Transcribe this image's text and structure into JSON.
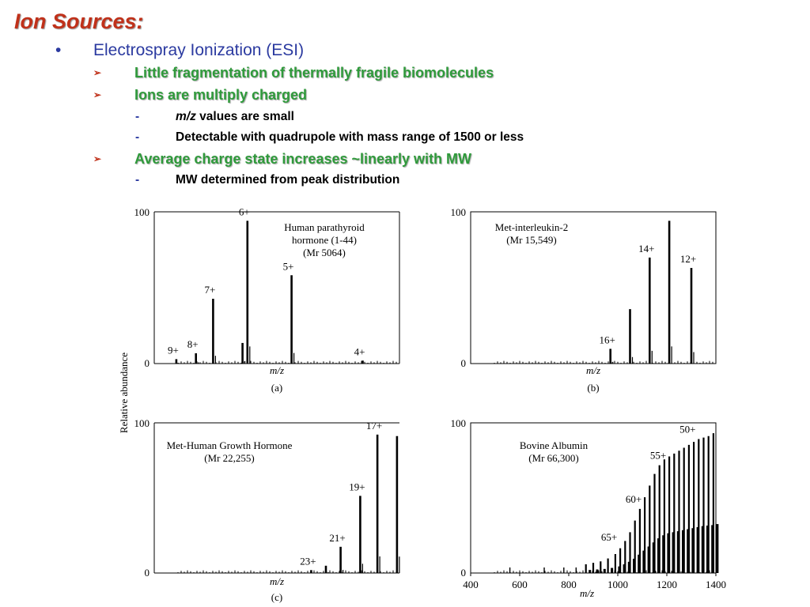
{
  "slide": {
    "title": "Ion Sources:",
    "bullet1": {
      "marker": "•",
      "text": "Electrospray Ionization (ESI)"
    },
    "sub1": {
      "marker": "➢",
      "text": "Little fragmentation of thermally fragile biomolecules"
    },
    "sub2": {
      "marker": "➢",
      "text": "Ions are multiply charged"
    },
    "sub2a": {
      "marker": "-",
      "italic": "m/z",
      "rest": " values are small"
    },
    "sub2b": {
      "marker": "-",
      "text": "Detectable with quadrupole with mass range of 1500 or less"
    },
    "sub3": {
      "marker": "➢",
      "text": "Average charge state increases ~linearly with MW"
    },
    "sub3a": {
      "marker": "-",
      "text": "MW determined from peak distribution"
    }
  },
  "figure": {
    "ylabel": "Relative abundance"
  },
  "chart_data": [
    {
      "type": "line",
      "panel": "(a)",
      "title_lines": [
        "Human parathyroid",
        "hormone (1-44)",
        "(Mr 5064)"
      ],
      "xlabel": "m/z",
      "ylabel": "Relative abundance",
      "ylim": [
        0,
        100
      ],
      "yticks": [
        "100",
        "0"
      ],
      "peaks": [
        {
          "label": "9+",
          "x": 0.09,
          "y": 3
        },
        {
          "label": "8+",
          "x": 0.17,
          "y": 7
        },
        {
          "label": "7+",
          "x": 0.24,
          "y": 44
        },
        {
          "label": "",
          "x": 0.36,
          "y": 14
        },
        {
          "label": "6+",
          "x": 0.38,
          "y": 97
        },
        {
          "label": "5+",
          "x": 0.56,
          "y": 60
        },
        {
          "label": "4+",
          "x": 0.85,
          "y": 2
        }
      ]
    },
    {
      "type": "line",
      "panel": "(b)",
      "title_lines": [
        "Met-interleukin-2",
        "(Mr 15,549)"
      ],
      "xlabel": "m/z",
      "ylim": [
        0,
        100
      ],
      "yticks": [
        "100",
        "0"
      ],
      "peaks": [
        {
          "label": "16+",
          "x": 0.57,
          "y": 10
        },
        {
          "label": "",
          "x": 0.65,
          "y": 37
        },
        {
          "label": "14+",
          "x": 0.73,
          "y": 72
        },
        {
          "label": "",
          "x": 0.81,
          "y": 97
        },
        {
          "label": "12+",
          "x": 0.9,
          "y": 65
        }
      ]
    },
    {
      "type": "line",
      "panel": "(c)",
      "title_lines": [
        "Met-Human Growth Hormone",
        "(Mr 22,255)"
      ],
      "xlabel": "m/z",
      "ylim": [
        0,
        100
      ],
      "yticks": [
        "100",
        "0"
      ],
      "peaks": [
        {
          "label": "23+",
          "x": 0.64,
          "y": 2
        },
        {
          "label": "",
          "x": 0.7,
          "y": 5
        },
        {
          "label": "21+",
          "x": 0.76,
          "y": 18
        },
        {
          "label": "19+",
          "x": 0.84,
          "y": 53
        },
        {
          "label": "17+",
          "x": 0.91,
          "y": 95
        },
        {
          "label": "",
          "x": 0.99,
          "y": 94
        }
      ]
    },
    {
      "type": "line",
      "panel": "",
      "title_lines": [
        "Bovine Albumin",
        "(Mr 66,300)"
      ],
      "xlabel": "m/z",
      "xlim": [
        400,
        1400
      ],
      "xticks": [
        "400",
        "600",
        "800",
        "1000",
        "1200",
        "1400"
      ],
      "ylim": [
        0,
        100
      ],
      "yticks": [
        "100",
        "0"
      ],
      "series": {
        "name": "",
        "x": [
          870,
          900,
          930,
          960,
          990,
          1010,
          1030,
          1050,
          1070,
          1090,
          1110,
          1130,
          1150,
          1170,
          1190,
          1210,
          1230,
          1250,
          1270,
          1290,
          1310,
          1330,
          1350,
          1370,
          1390
        ],
        "y": [
          6,
          7,
          8,
          10,
          13,
          17,
          22,
          28,
          36,
          44,
          52,
          60,
          68,
          74,
          78,
          80,
          82,
          84,
          86,
          88,
          90,
          92,
          93,
          94,
          96
        ]
      },
      "annotations": [
        {
          "label": "65+",
          "x": 1010,
          "y": 18
        },
        {
          "label": "60+",
          "x": 1110,
          "y": 44
        },
        {
          "label": "55+",
          "x": 1210,
          "y": 74
        },
        {
          "label": "50+",
          "x": 1330,
          "y": 92
        }
      ]
    }
  ]
}
